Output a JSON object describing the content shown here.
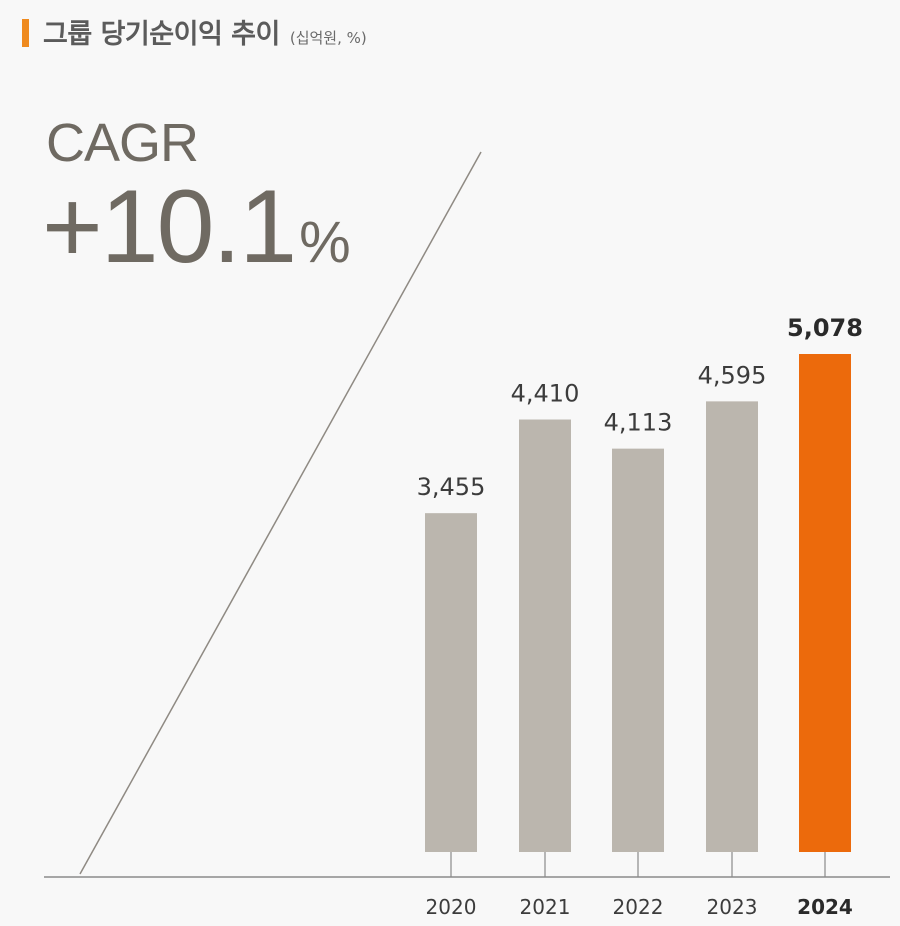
{
  "header": {
    "title": "그룹 당기순이익 추이",
    "unit": "(십억원, %)",
    "accent_color": "#ef8a1e"
  },
  "cagr": {
    "label": "CAGR",
    "value": "+10.1",
    "unit": "%"
  },
  "chart_data": {
    "type": "bar",
    "categories": [
      "2020",
      "2021",
      "2022",
      "2023",
      "2024"
    ],
    "values": [
      3455,
      4410,
      4113,
      4595,
      5078
    ],
    "value_labels": [
      "3,455",
      "4,410",
      "4,113",
      "4,595",
      "5,078"
    ],
    "highlight_index": 4,
    "ylim": [
      0,
      5078
    ],
    "colors": {
      "bar": "#bbb6ae",
      "highlight": "#ec6a0c",
      "axis": "#8a8a8a"
    },
    "title": "그룹 당기순이익 추이",
    "xlabel": "",
    "ylabel": ""
  }
}
